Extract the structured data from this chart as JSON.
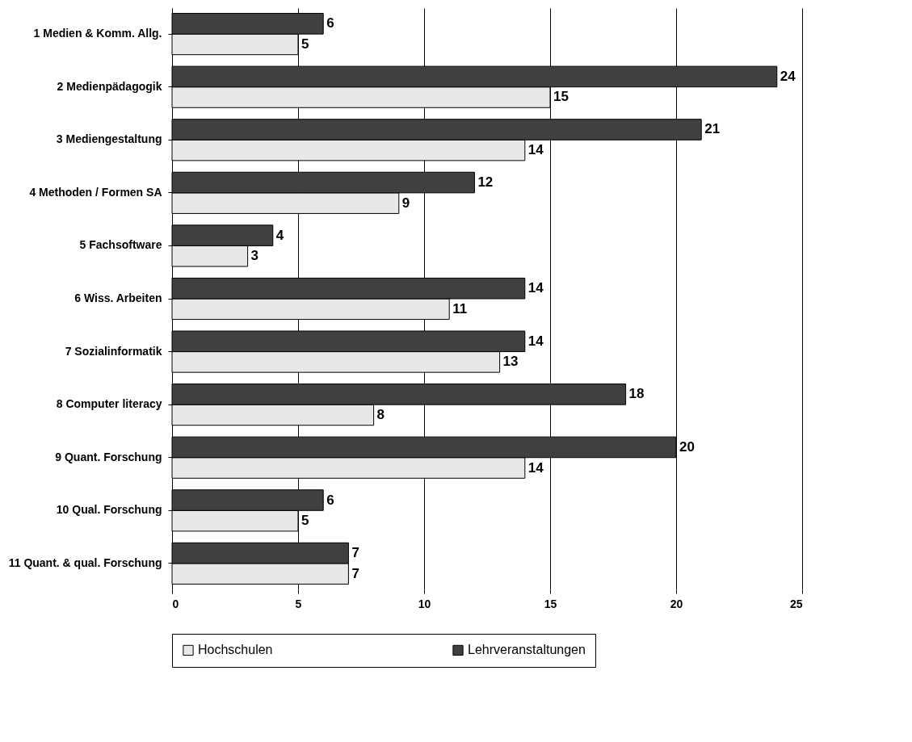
{
  "chart_data": {
    "type": "bar",
    "orientation": "horizontal",
    "categories": [
      "1 Medien & Komm. Allg.",
      "2 Medienpädagogik",
      "3 Mediengestaltung",
      "4 Methoden / Formen SA",
      "5 Fachsoftware",
      "6 Wiss. Arbeiten",
      "7 Sozialinformatik",
      "8 Computer literacy",
      "9 Quant. Forschung",
      "10 Qual. Forschung",
      "11 Quant. & qual. Forschung"
    ],
    "series": [
      {
        "name": "Hochschulen",
        "color": "#e8e8e8",
        "values": [
          5,
          15,
          14,
          9,
          3,
          11,
          13,
          8,
          14,
          5,
          7
        ]
      },
      {
        "name": "Lehrveranstaltungen",
        "color": "#404040",
        "values": [
          6,
          24,
          21,
          12,
          4,
          14,
          14,
          18,
          20,
          6,
          7
        ]
      }
    ],
    "xlim": [
      0,
      25
    ],
    "xticks": [
      0,
      5,
      10,
      15,
      20,
      25
    ],
    "grid": "x",
    "legend": "bottom",
    "data_labels": true
  }
}
